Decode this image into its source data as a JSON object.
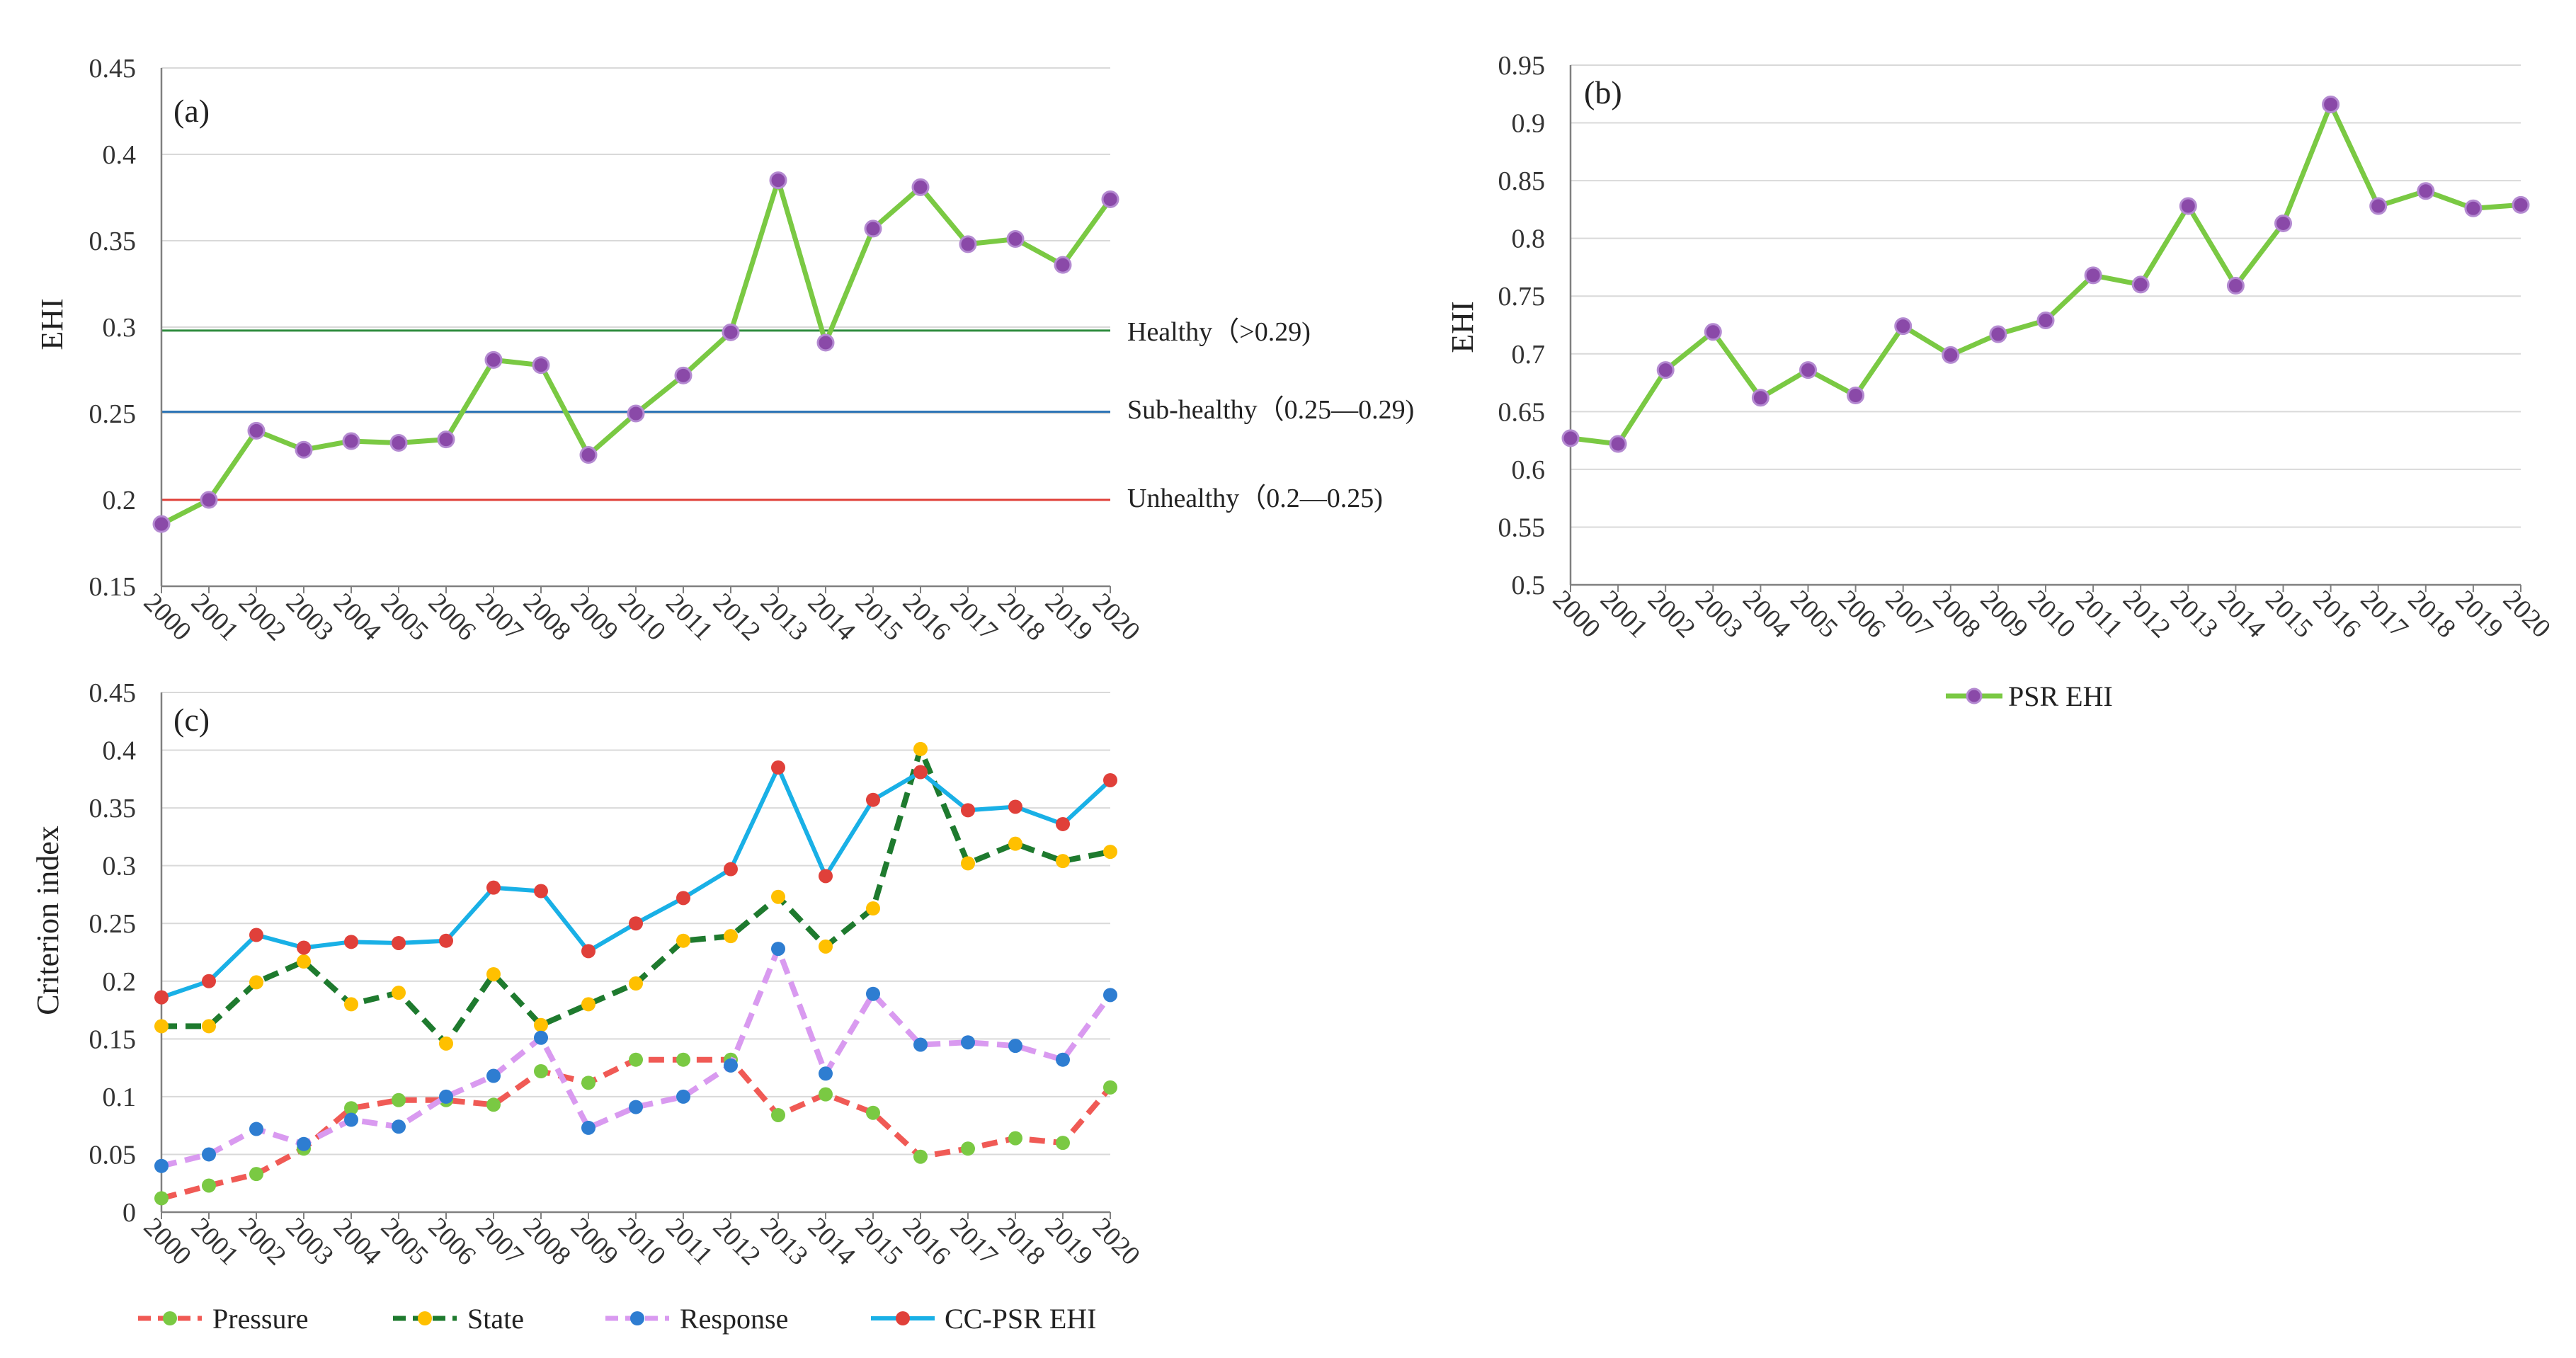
{
  "chart_data": [
    {
      "type": "line",
      "panel_label": "(a)",
      "title": "",
      "xlabel": "",
      "ylabel": "EHI",
      "ylim": [
        0.15,
        0.45
      ],
      "yticks": [
        "0.15",
        "0.2",
        "0.25",
        "0.3",
        "0.35",
        "0.4",
        "0.45"
      ],
      "grid": true,
      "categories": [
        "2000",
        "2001",
        "2002",
        "2003",
        "2004",
        "2005",
        "2006",
        "2007",
        "2008",
        "2009",
        "2010",
        "2011",
        "2012",
        "2013",
        "2014",
        "2015",
        "2016",
        "2017",
        "2018",
        "2019",
        "2020"
      ],
      "series": [
        {
          "name": "EHI",
          "line_color": "#7ac943",
          "marker_color": "#8a49a8",
          "values": [
            0.186,
            0.2,
            0.24,
            0.229,
            0.234,
            0.233,
            0.235,
            0.281,
            0.278,
            0.226,
            0.25,
            0.272,
            0.297,
            0.385,
            0.291,
            0.357,
            0.381,
            0.348,
            0.351,
            0.336,
            0.374
          ]
        }
      ],
      "reference_lines": [
        {
          "value": 0.298,
          "color": "#2e8b3e",
          "label": "Healthy（>0.29)"
        },
        {
          "value": 0.251,
          "color": "#2e75b6",
          "label": "Sub-healthy（0.25—0.29)"
        },
        {
          "value": 0.2,
          "color": "#e0403a",
          "label": "Unhealthy（0.2—0.25)"
        }
      ]
    },
    {
      "type": "line",
      "panel_label": "(b)",
      "title": "",
      "xlabel": "",
      "ylabel": "EHI",
      "ylim": [
        0.5,
        0.95
      ],
      "yticks": [
        "0.5",
        "0.55",
        "0.6",
        "0.65",
        "0.7",
        "0.75",
        "0.8",
        "0.85",
        "0.9",
        "0.95"
      ],
      "grid": true,
      "legend": "bottom",
      "categories": [
        "2000",
        "2001",
        "2002",
        "2003",
        "2004",
        "2005",
        "2006",
        "2007",
        "2008",
        "2009",
        "2010",
        "2011",
        "2012",
        "2013",
        "2014",
        "2015",
        "2016",
        "2017",
        "2018",
        "2019",
        "2020"
      ],
      "series": [
        {
          "name": "PSR EHI",
          "line_color": "#7ac943",
          "marker_color": "#8a49a8",
          "values": [
            0.627,
            0.622,
            0.686,
            0.719,
            0.662,
            0.686,
            0.664,
            0.724,
            0.699,
            0.717,
            0.729,
            0.768,
            0.76,
            0.828,
            0.759,
            0.813,
            0.916,
            0.828,
            0.841,
            0.826,
            0.829
          ]
        }
      ]
    },
    {
      "type": "line",
      "panel_label": "(c)",
      "title": "",
      "xlabel": "",
      "ylabel": "Criterion index",
      "ylim": [
        0,
        0.45
      ],
      "yticks": [
        "0",
        "0.05",
        "0.1",
        "0.15",
        "0.2",
        "0.25",
        "0.3",
        "0.35",
        "0.4",
        "0.45"
      ],
      "grid": true,
      "legend": "bottom",
      "categories": [
        "2000",
        "2001",
        "2002",
        "2003",
        "2004",
        "2005",
        "2006",
        "2007",
        "2008",
        "2009",
        "2010",
        "2011",
        "2012",
        "2013",
        "2014",
        "2015",
        "2016",
        "2017",
        "2018",
        "2019",
        "2020"
      ],
      "series": [
        {
          "name": "Pressure",
          "line_color": "#f05a55",
          "marker_color": "#7ac943",
          "dashed": true,
          "values": [
            0.012,
            0.023,
            0.033,
            0.055,
            0.09,
            0.097,
            0.097,
            0.093,
            0.122,
            0.112,
            0.132,
            0.132,
            0.132,
            0.084,
            0.102,
            0.086,
            0.048,
            0.055,
            0.064,
            0.06,
            0.108
          ]
        },
        {
          "name": "State",
          "line_color": "#1e7a2e",
          "marker_color": "#ffc000",
          "dashed": true,
          "values": [
            0.161,
            0.161,
            0.199,
            0.217,
            0.18,
            0.19,
            0.146,
            0.206,
            0.162,
            0.18,
            0.198,
            0.235,
            0.239,
            0.273,
            0.23,
            0.263,
            0.401,
            0.302,
            0.319,
            0.304,
            0.312
          ]
        },
        {
          "name": "Response",
          "line_color": "#d99af0",
          "marker_color": "#2e7dd1",
          "dashed": true,
          "values": [
            0.04,
            0.05,
            0.072,
            0.059,
            0.08,
            0.074,
            0.1,
            0.118,
            0.151,
            0.073,
            0.091,
            0.1,
            0.127,
            0.228,
            0.12,
            0.189,
            0.145,
            0.147,
            0.144,
            0.132,
            0.188
          ]
        },
        {
          "name": "CC-PSR EHI",
          "line_color": "#19b0e6",
          "marker_color": "#e0403a",
          "dashed": false,
          "values": [
            0.186,
            0.2,
            0.24,
            0.229,
            0.234,
            0.233,
            0.235,
            0.281,
            0.278,
            0.226,
            0.25,
            0.272,
            0.297,
            0.385,
            0.291,
            0.357,
            0.381,
            0.348,
            0.351,
            0.336,
            0.374
          ]
        }
      ]
    }
  ]
}
